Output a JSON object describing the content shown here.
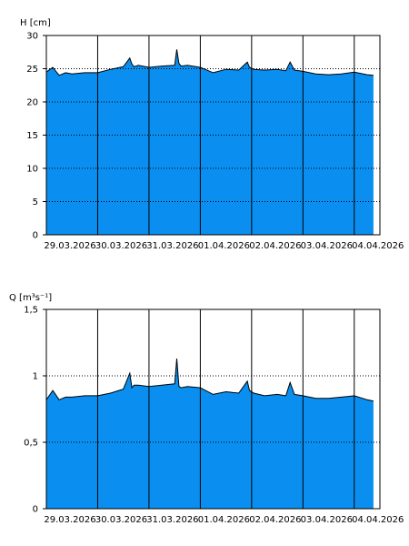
{
  "colors": {
    "fill": "#0a8ff0",
    "line": "#000000",
    "grid": "#000000",
    "background": "#ffffff"
  },
  "chart_data": [
    {
      "type": "area",
      "ylabel": "H [cm]",
      "ylim": [
        0,
        30
      ],
      "yticks": [
        0,
        5,
        10,
        15,
        20,
        25,
        30
      ],
      "ytick_labels": [
        "0",
        "5",
        "10",
        "15",
        "20",
        "25",
        "30"
      ],
      "xlim": [
        "2026-03-29T00:00",
        "2026-04-04T12:00"
      ],
      "xtick_labels": [
        "29.03.2026",
        "30.03.2026",
        "31.03.2026",
        "01.04.2026",
        "02.04.2026",
        "03.04.2026",
        "04.04.2026"
      ],
      "grid": "vertical solid at midnight, horizontal dotted",
      "series": [
        {
          "x": [
            "2026-03-28T23:00",
            "2026-03-29T03:00",
            "2026-03-29T06:00",
            "2026-03-29T09:00",
            "2026-03-29T12:00",
            "2026-03-29T18:00",
            "2026-03-30T00:00",
            "2026-03-30T06:00",
            "2026-03-30T12:00",
            "2026-03-30T15:00",
            "2026-03-30T16:00",
            "2026-03-30T17:00",
            "2026-03-30T19:00",
            "2026-03-31T00:00",
            "2026-03-31T06:00",
            "2026-03-31T12:00",
            "2026-03-31T13:00",
            "2026-03-31T14:00",
            "2026-03-31T15:00",
            "2026-03-31T18:00",
            "2026-04-01T00:00",
            "2026-04-01T06:00",
            "2026-04-01T12:00",
            "2026-04-01T18:00",
            "2026-04-01T22:00",
            "2026-04-01T23:00",
            "2026-04-02T01:00",
            "2026-04-02T06:00",
            "2026-04-02T12:00",
            "2026-04-02T16:00",
            "2026-04-02T18:00",
            "2026-04-02T20:00",
            "2026-04-03T00:00",
            "2026-04-03T06:00",
            "2026-04-03T12:00",
            "2026-04-03T18:00",
            "2026-04-04T00:00",
            "2026-04-04T06:00",
            "2026-04-04T09:00"
          ],
          "y": [
            24.5,
            25.2,
            24.0,
            24.4,
            24.2,
            24.4,
            24.4,
            24.9,
            25.3,
            26.6,
            25.7,
            25.3,
            25.5,
            25.2,
            25.4,
            25.5,
            27.9,
            25.8,
            25.4,
            25.5,
            25.2,
            24.4,
            24.9,
            24.8,
            26.0,
            25.2,
            24.9,
            24.8,
            24.9,
            24.7,
            26.0,
            24.8,
            24.6,
            24.2,
            24.1,
            24.2,
            24.5,
            24.1,
            24.0
          ]
        }
      ]
    },
    {
      "type": "area",
      "ylabel": "Q [m³s⁻¹]",
      "ylim": [
        0,
        1.5
      ],
      "yticks": [
        0,
        0.5,
        1,
        1.5
      ],
      "ytick_labels": [
        "0",
        "0,5",
        "1",
        "1,5"
      ],
      "xlim": [
        "2026-03-29T00:00",
        "2026-04-04T12:00"
      ],
      "xtick_labels": [
        "29.03.2026",
        "30.03.2026",
        "31.03.2026",
        "01.04.2026",
        "02.04.2026",
        "03.04.2026",
        "04.04.2026"
      ],
      "grid": "vertical solid at midnight, horizontal dotted",
      "series": [
        {
          "x": [
            "2026-03-28T23:00",
            "2026-03-29T03:00",
            "2026-03-29T06:00",
            "2026-03-29T09:00",
            "2026-03-29T12:00",
            "2026-03-29T18:00",
            "2026-03-30T00:00",
            "2026-03-30T06:00",
            "2026-03-30T12:00",
            "2026-03-30T15:00",
            "2026-03-30T16:00",
            "2026-03-30T17:00",
            "2026-03-30T19:00",
            "2026-03-31T00:00",
            "2026-03-31T06:00",
            "2026-03-31T12:00",
            "2026-03-31T13:00",
            "2026-03-31T14:00",
            "2026-03-31T15:00",
            "2026-03-31T18:00",
            "2026-04-01T00:00",
            "2026-04-01T06:00",
            "2026-04-01T12:00",
            "2026-04-01T18:00",
            "2026-04-01T22:00",
            "2026-04-01T23:00",
            "2026-04-02T01:00",
            "2026-04-02T06:00",
            "2026-04-02T12:00",
            "2026-04-02T16:00",
            "2026-04-02T18:00",
            "2026-04-02T20:00",
            "2026-04-03T00:00",
            "2026-04-03T06:00",
            "2026-04-03T12:00",
            "2026-04-03T18:00",
            "2026-04-04T00:00",
            "2026-04-04T06:00",
            "2026-04-04T09:00"
          ],
          "y": [
            0.82,
            0.89,
            0.82,
            0.84,
            0.84,
            0.85,
            0.85,
            0.87,
            0.9,
            1.02,
            0.91,
            0.93,
            0.93,
            0.92,
            0.93,
            0.94,
            1.13,
            0.92,
            0.91,
            0.92,
            0.91,
            0.86,
            0.88,
            0.87,
            0.96,
            0.89,
            0.87,
            0.85,
            0.86,
            0.85,
            0.95,
            0.86,
            0.85,
            0.83,
            0.83,
            0.84,
            0.85,
            0.82,
            0.81
          ]
        }
      ]
    }
  ]
}
